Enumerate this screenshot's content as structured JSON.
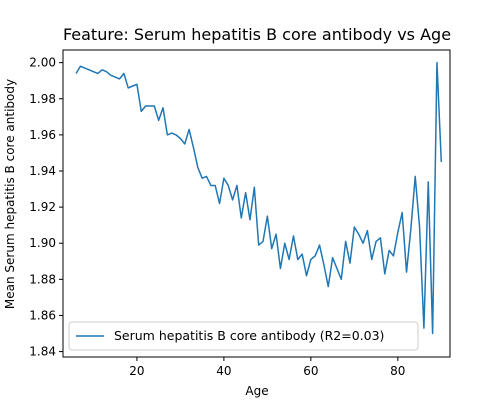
{
  "chart_data": {
    "type": "line",
    "title": "Feature: Serum hepatitis B core antibody vs Age",
    "xlabel": "Age",
    "ylabel": "Mean Serum hepatitis B core antibody",
    "xlim": [
      3,
      92
    ],
    "ylim": [
      1.837,
      2.007
    ],
    "xticks": [
      20,
      40,
      60,
      80
    ],
    "yticks": [
      1.84,
      1.86,
      1.88,
      1.9,
      1.92,
      1.94,
      1.96,
      1.98,
      2.0
    ],
    "grid": false,
    "legend_position": "lower-left",
    "series": [
      {
        "name": "Serum hepatitis B core antibody (R2=0.03)",
        "color": "#1f77b4",
        "x": [
          6,
          7,
          8,
          9,
          10,
          11,
          12,
          13,
          14,
          15,
          16,
          17,
          18,
          19,
          20,
          21,
          22,
          23,
          24,
          25,
          26,
          27,
          28,
          29,
          30,
          31,
          32,
          33,
          34,
          35,
          36,
          37,
          38,
          39,
          40,
          41,
          42,
          43,
          44,
          45,
          46,
          47,
          48,
          49,
          50,
          51,
          52,
          53,
          54,
          55,
          56,
          57,
          58,
          59,
          60,
          61,
          62,
          63,
          64,
          65,
          66,
          67,
          68,
          69,
          70,
          71,
          72,
          73,
          74,
          75,
          76,
          77,
          78,
          79,
          80,
          81,
          82,
          83,
          84,
          85,
          86,
          87,
          88,
          89,
          90
        ],
        "y": [
          1.994,
          1.998,
          1.997,
          1.996,
          1.995,
          1.994,
          1.996,
          1.995,
          1.993,
          1.992,
          1.991,
          1.994,
          1.986,
          1.987,
          1.988,
          1.973,
          1.976,
          1.976,
          1.976,
          1.968,
          1.975,
          1.96,
          1.961,
          1.96,
          1.958,
          1.955,
          1.963,
          1.953,
          1.942,
          1.936,
          1.937,
          1.932,
          1.932,
          1.922,
          1.936,
          1.932,
          1.924,
          1.932,
          1.914,
          1.928,
          1.913,
          1.931,
          1.899,
          1.901,
          1.915,
          1.897,
          1.905,
          1.886,
          1.9,
          1.891,
          1.904,
          1.891,
          1.894,
          1.882,
          1.891,
          1.893,
          1.899,
          1.888,
          1.876,
          1.892,
          1.886,
          1.88,
          1.901,
          1.889,
          1.909,
          1.905,
          1.9,
          1.907,
          1.891,
          1.901,
          1.903,
          1.883,
          1.896,
          1.893,
          1.906,
          1.917,
          1.884,
          1.908,
          1.937,
          1.909,
          1.853,
          1.934,
          1.85,
          2.0,
          1.945
        ]
      }
    ]
  }
}
